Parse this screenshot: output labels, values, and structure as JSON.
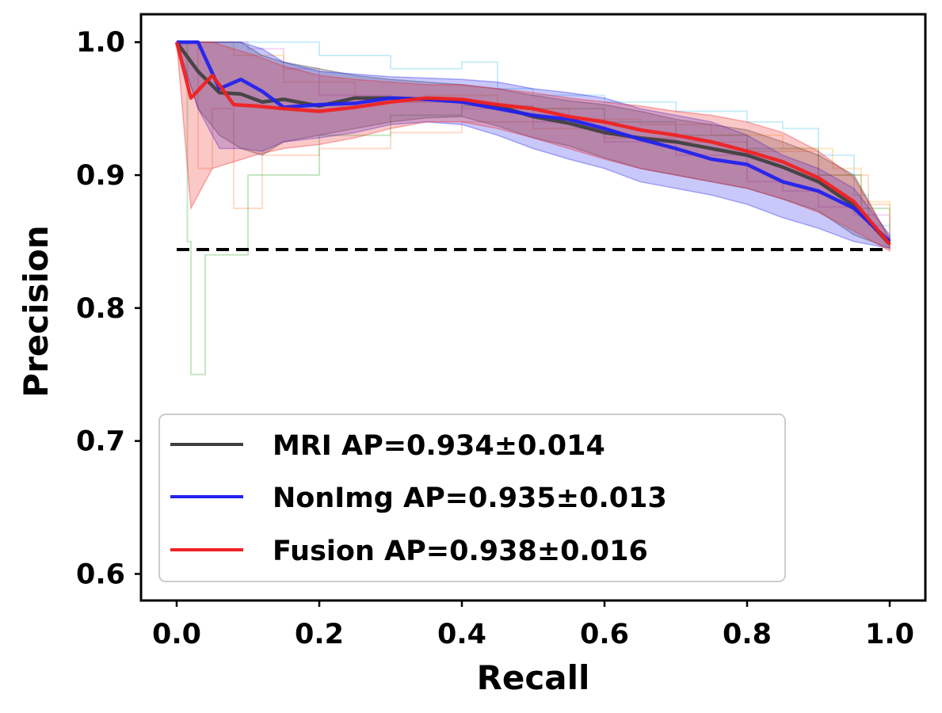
{
  "chart_data": {
    "type": "line",
    "xlabel": "Recall",
    "ylabel": "Precision",
    "xlim": [
      -0.05,
      1.05
    ],
    "ylim": [
      0.58,
      1.021
    ],
    "xticks": [
      0.0,
      0.2,
      0.4,
      0.6,
      0.8,
      1.0
    ],
    "xtick_labels": [
      "0.0",
      "0.2",
      "0.4",
      "0.6",
      "0.8",
      "1.0"
    ],
    "yticks": [
      0.6,
      0.7,
      0.8,
      0.9,
      1.0
    ],
    "ytick_labels": [
      "0.6",
      "0.7",
      "0.8",
      "0.9",
      "1.0"
    ],
    "grid": false,
    "legend_position": "lower-left",
    "baseline": {
      "y": 0.844,
      "x": [
        0.0,
        1.0
      ],
      "style": "dashed",
      "color": "#000000"
    },
    "series": [
      {
        "name": "MRI AP=0.934±0.014",
        "color": "#404040",
        "x": [
          0.0,
          0.03,
          0.06,
          0.09,
          0.12,
          0.15,
          0.2,
          0.25,
          0.3,
          0.35,
          0.4,
          0.45,
          0.5,
          0.55,
          0.6,
          0.65,
          0.7,
          0.75,
          0.8,
          0.85,
          0.9,
          0.95,
          1.0
        ],
        "values": [
          1.0,
          0.978,
          0.962,
          0.961,
          0.955,
          0.957,
          0.952,
          0.958,
          0.958,
          0.957,
          0.956,
          0.952,
          0.944,
          0.939,
          0.932,
          0.928,
          0.925,
          0.92,
          0.915,
          0.906,
          0.895,
          0.877,
          0.848
        ],
        "band_upper": [
          1.0,
          1.0,
          1.0,
          1.0,
          0.99,
          0.985,
          0.98,
          0.975,
          0.972,
          0.97,
          0.968,
          0.965,
          0.96,
          0.956,
          0.953,
          0.948,
          0.942,
          0.938,
          0.934,
          0.925,
          0.915,
          0.9,
          0.852
        ],
        "band_lower": [
          1.0,
          0.95,
          0.93,
          0.92,
          0.915,
          0.925,
          0.93,
          0.935,
          0.94,
          0.943,
          0.944,
          0.937,
          0.928,
          0.922,
          0.913,
          0.905,
          0.9,
          0.895,
          0.89,
          0.882,
          0.873,
          0.855,
          0.845
        ]
      },
      {
        "name": "NonImg AP=0.935±0.013",
        "color": "#2222ee",
        "x": [
          0.0,
          0.03,
          0.06,
          0.09,
          0.12,
          0.15,
          0.2,
          0.25,
          0.3,
          0.35,
          0.4,
          0.45,
          0.5,
          0.55,
          0.6,
          0.65,
          0.7,
          0.75,
          0.8,
          0.85,
          0.9,
          0.95,
          1.0
        ],
        "values": [
          1.0,
          1.0,
          0.965,
          0.972,
          0.963,
          0.951,
          0.953,
          0.954,
          0.958,
          0.957,
          0.955,
          0.95,
          0.945,
          0.942,
          0.935,
          0.927,
          0.92,
          0.912,
          0.908,
          0.895,
          0.888,
          0.875,
          0.85
        ],
        "band_upper": [
          1.0,
          1.0,
          1.0,
          1.0,
          0.995,
          0.985,
          0.978,
          0.976,
          0.974,
          0.973,
          0.972,
          0.97,
          0.965,
          0.962,
          0.958,
          0.95,
          0.945,
          0.94,
          0.93,
          0.915,
          0.905,
          0.89,
          0.855
        ],
        "band_lower": [
          1.0,
          0.95,
          0.92,
          0.92,
          0.918,
          0.925,
          0.928,
          0.932,
          0.938,
          0.94,
          0.938,
          0.93,
          0.92,
          0.912,
          0.905,
          0.895,
          0.89,
          0.885,
          0.878,
          0.868,
          0.86,
          0.85,
          0.845
        ]
      },
      {
        "name": "Fusion AP=0.938±0.016",
        "color": "#ee2222",
        "x": [
          0.0,
          0.02,
          0.05,
          0.08,
          0.11,
          0.15,
          0.2,
          0.25,
          0.3,
          0.35,
          0.4,
          0.45,
          0.5,
          0.55,
          0.6,
          0.65,
          0.7,
          0.75,
          0.8,
          0.85,
          0.9,
          0.95,
          1.0
        ],
        "values": [
          1.0,
          0.958,
          0.975,
          0.953,
          0.952,
          0.95,
          0.948,
          0.951,
          0.955,
          0.958,
          0.957,
          0.953,
          0.95,
          0.944,
          0.94,
          0.934,
          0.93,
          0.925,
          0.918,
          0.91,
          0.898,
          0.88,
          0.848
        ],
        "band_upper": [
          1.0,
          1.0,
          1.0,
          0.995,
          0.99,
          0.982,
          0.975,
          0.972,
          0.97,
          0.968,
          0.968,
          0.965,
          0.962,
          0.958,
          0.955,
          0.952,
          0.948,
          0.945,
          0.94,
          0.932,
          0.918,
          0.898,
          0.852
        ],
        "band_lower": [
          1.0,
          0.875,
          0.905,
          0.91,
          0.915,
          0.92,
          0.923,
          0.928,
          0.935,
          0.94,
          0.94,
          0.935,
          0.928,
          0.92,
          0.912,
          0.905,
          0.9,
          0.895,
          0.89,
          0.882,
          0.872,
          0.858,
          0.843
        ]
      }
    ],
    "faint_curves": [
      {
        "color": "#ff9966",
        "x": [
          0.0,
          0.03,
          0.05,
          0.08,
          0.12,
          0.2,
          0.3,
          0.4,
          0.5,
          0.6,
          0.7,
          0.8,
          0.9,
          0.97,
          1.0
        ],
        "values": [
          1.0,
          0.905,
          0.95,
          0.875,
          0.915,
          0.92,
          0.932,
          0.94,
          0.935,
          0.928,
          0.925,
          0.918,
          0.9,
          0.878,
          0.848
        ]
      },
      {
        "color": "#55bb55",
        "x": [
          0.0,
          0.015,
          0.02,
          0.04,
          0.1,
          0.2,
          0.3,
          0.4,
          0.5,
          0.6,
          0.7,
          0.8,
          0.9,
          0.96,
          1.0
        ],
        "values": [
          1.0,
          0.85,
          0.75,
          0.84,
          0.9,
          0.93,
          0.945,
          0.952,
          0.95,
          0.94,
          0.93,
          0.92,
          0.9,
          0.875,
          0.848
        ]
      },
      {
        "color": "#66ccee",
        "x": [
          0.0,
          0.1,
          0.2,
          0.3,
          0.4,
          0.45,
          0.5,
          0.6,
          0.7,
          0.8,
          0.85,
          0.9,
          0.95,
          0.97,
          1.0
        ],
        "values": [
          1.0,
          1.0,
          0.99,
          0.98,
          0.985,
          0.965,
          0.96,
          0.955,
          0.948,
          0.94,
          0.935,
          0.915,
          0.885,
          0.862,
          0.848
        ]
      },
      {
        "color": "#dd88dd",
        "x": [
          0.0,
          0.05,
          0.1,
          0.15,
          0.2,
          0.3,
          0.4,
          0.5,
          0.6,
          0.7,
          0.8,
          0.85,
          0.9,
          0.95,
          1.0
        ],
        "values": [
          1.0,
          1.0,
          0.995,
          0.98,
          0.96,
          0.955,
          0.95,
          0.94,
          0.925,
          0.915,
          0.895,
          0.888,
          0.876,
          0.87,
          0.848
        ]
      },
      {
        "color": "#ffbb55",
        "x": [
          0.0,
          0.08,
          0.15,
          0.25,
          0.35,
          0.45,
          0.55,
          0.65,
          0.75,
          0.85,
          0.92,
          0.96,
          1.0
        ],
        "values": [
          1.0,
          0.99,
          0.97,
          0.955,
          0.96,
          0.95,
          0.942,
          0.938,
          0.93,
          0.92,
          0.905,
          0.88,
          0.848
        ]
      }
    ]
  }
}
